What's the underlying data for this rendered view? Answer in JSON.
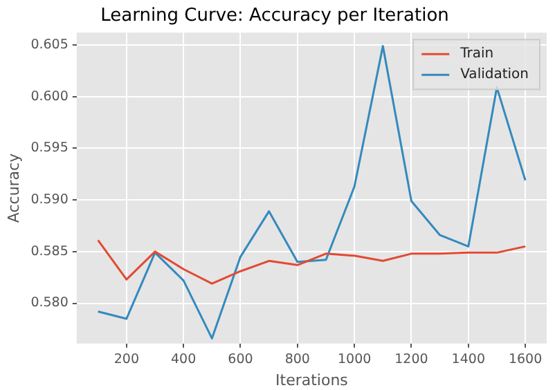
{
  "chart_data": {
    "type": "line",
    "title": "Learning Curve: Accuracy per Iteration",
    "xlabel": "Iterations",
    "ylabel": "Accuracy",
    "x": [
      100,
      200,
      300,
      400,
      500,
      600,
      700,
      800,
      900,
      1000,
      1100,
      1200,
      1300,
      1400,
      1500,
      1600
    ],
    "series": [
      {
        "name": "Train",
        "color": "#e24a33",
        "values": [
          0.5861,
          0.5823,
          0.585,
          0.5833,
          0.5819,
          0.5831,
          0.5841,
          0.5837,
          0.5848,
          0.5846,
          0.5841,
          0.5848,
          0.5848,
          0.5849,
          0.5849,
          0.5855
        ]
      },
      {
        "name": "Validation",
        "color": "#348abd",
        "values": [
          0.5792,
          0.5785,
          0.5849,
          0.5822,
          0.5766,
          0.5845,
          0.5889,
          0.584,
          0.5842,
          0.5913,
          0.6049,
          0.5899,
          0.5866,
          0.5855,
          0.6009,
          0.5919
        ]
      }
    ],
    "xlim": [
      25,
      1675
    ],
    "ylim": [
      0.5761,
      0.6062
    ],
    "xticks": [
      200,
      400,
      600,
      800,
      1000,
      1200,
      1400,
      1600
    ],
    "yticks": [
      {
        "value": 0.58,
        "label": "0.580"
      },
      {
        "value": 0.585,
        "label": "0.585"
      },
      {
        "value": 0.59,
        "label": "0.590"
      },
      {
        "value": 0.595,
        "label": "0.595"
      },
      {
        "value": 0.6,
        "label": "0.600"
      },
      {
        "value": 0.605,
        "label": "0.605"
      }
    ],
    "grid": true,
    "legend": "top right",
    "marker": "none",
    "line_style": "solid"
  }
}
